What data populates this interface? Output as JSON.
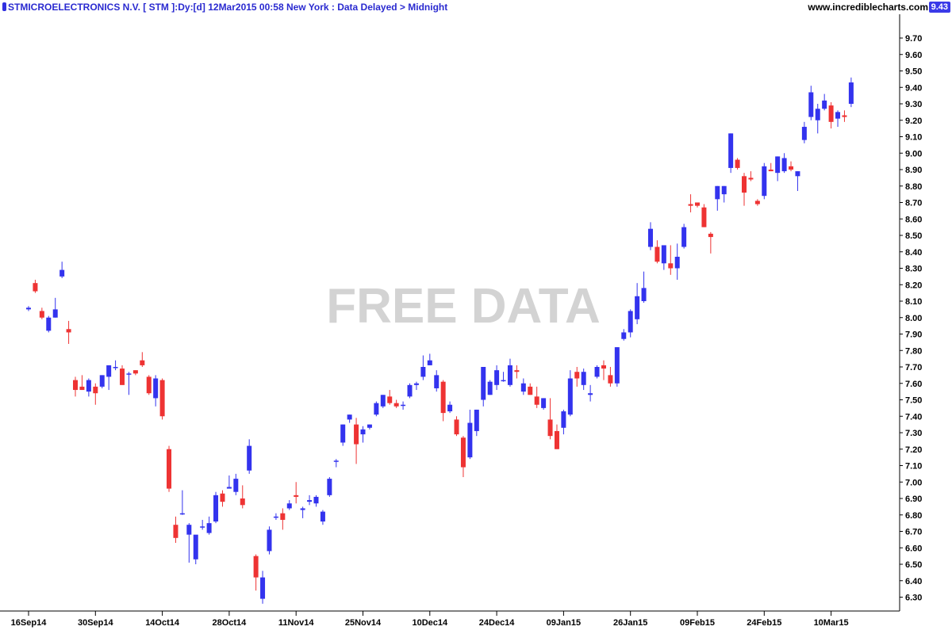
{
  "header": {
    "title": "STMICROELECTRONICS N.V. [ STM ]:Dy:[d]  12Mar2015 00:58 New York : Data Delayed > Midnight",
    "site": "www.incrediblecharts.com",
    "last_price": "9.43"
  },
  "watermark": "FREE DATA",
  "colors": {
    "up": "#3333ee",
    "down": "#ee3333",
    "axis": "#000000",
    "watermark": "#d3d3d3"
  },
  "chart_data": {
    "type": "candlestick",
    "title": "STMICROELECTRONICS N.V. [ STM ]:Dy:[d]",
    "ylim": [
      6.25,
      9.75
    ],
    "y_ticks": [
      "9.70",
      "9.60",
      "9.50",
      "9.40",
      "9.30",
      "9.20",
      "9.10",
      "9.00",
      "8.90",
      "8.80",
      "8.70",
      "8.60",
      "8.50",
      "8.40",
      "8.30",
      "8.20",
      "8.10",
      "8.00",
      "7.90",
      "7.80",
      "7.70",
      "7.60",
      "7.50",
      "7.40",
      "7.30",
      "7.20",
      "7.10",
      "7.00",
      "6.90",
      "6.80",
      "6.70",
      "6.60",
      "6.50",
      "6.40",
      "6.30"
    ],
    "x_ticks": [
      {
        "label": "16Sep14",
        "index": 0
      },
      {
        "label": "30Sep14",
        "index": 10
      },
      {
        "label": "14Oct14",
        "index": 20
      },
      {
        "label": "28Oct14",
        "index": 30
      },
      {
        "label": "11Nov14",
        "index": 40
      },
      {
        "label": "25Nov14",
        "index": 50
      },
      {
        "label": "10Dec14",
        "index": 60
      },
      {
        "label": "24Dec14",
        "index": 70
      },
      {
        "label": "09Jan15",
        "index": 80
      },
      {
        "label": "26Jan15",
        "index": 90
      },
      {
        "label": "09Feb15",
        "index": 100
      },
      {
        "label": "24Feb15",
        "index": 110
      },
      {
        "label": "10Mar15",
        "index": 120
      }
    ],
    "ohlc": [
      [
        8.05,
        8.07,
        8.04,
        8.06
      ],
      [
        8.21,
        8.23,
        8.15,
        8.16
      ],
      [
        8.04,
        8.06,
        7.99,
        8.0
      ],
      [
        7.92,
        8.01,
        7.91,
        8.0
      ],
      [
        8.0,
        8.12,
        8.0,
        8.05
      ],
      [
        8.25,
        8.34,
        8.24,
        8.29
      ],
      [
        7.93,
        7.98,
        7.84,
        7.91
      ],
      [
        7.62,
        7.64,
        7.52,
        7.56
      ],
      [
        7.58,
        7.65,
        7.56,
        7.56
      ],
      [
        7.55,
        7.63,
        7.52,
        7.62
      ],
      [
        7.58,
        7.6,
        7.47,
        7.54
      ],
      [
        7.58,
        7.65,
        7.57,
        7.65
      ],
      [
        7.64,
        7.71,
        7.56,
        7.71
      ],
      [
        7.7,
        7.74,
        7.68,
        7.7
      ],
      [
        7.69,
        7.71,
        7.59,
        7.59
      ],
      [
        7.66,
        7.67,
        7.53,
        7.66
      ],
      [
        7.68,
        7.68,
        7.65,
        7.66
      ],
      [
        7.74,
        7.79,
        7.7,
        7.71
      ],
      [
        7.64,
        7.65,
        7.53,
        7.54
      ],
      [
        7.51,
        7.65,
        7.46,
        7.63
      ],
      [
        7.62,
        7.63,
        7.38,
        7.4
      ],
      [
        7.2,
        7.22,
        6.94,
        6.96
      ],
      [
        6.74,
        6.79,
        6.63,
        6.66
      ],
      [
        6.81,
        6.95,
        6.8,
        6.81
      ],
      [
        6.68,
        6.75,
        6.51,
        6.74
      ],
      [
        6.53,
        6.67,
        6.5,
        6.68
      ],
      [
        6.73,
        6.77,
        6.71,
        6.73
      ],
      [
        6.69,
        6.79,
        6.68,
        6.75
      ],
      [
        6.76,
        6.94,
        6.75,
        6.92
      ],
      [
        6.93,
        6.95,
        6.85,
        6.88
      ],
      [
        6.96,
        7.04,
        6.96,
        6.97
      ],
      [
        6.94,
        7.05,
        6.92,
        7.02
      ],
      [
        6.9,
        6.98,
        6.84,
        6.86
      ],
      [
        7.07,
        7.26,
        7.05,
        7.22
      ],
      [
        6.55,
        6.56,
        6.34,
        6.42
      ],
      [
        6.29,
        6.46,
        6.26,
        6.42
      ],
      [
        6.58,
        6.73,
        6.56,
        6.71
      ],
      [
        6.79,
        6.81,
        6.77,
        6.79
      ],
      [
        6.81,
        6.84,
        6.71,
        6.77
      ],
      [
        6.84,
        6.89,
        6.83,
        6.87
      ],
      [
        6.92,
        7.0,
        6.87,
        6.91
      ],
      [
        6.83,
        6.85,
        6.78,
        6.84
      ],
      [
        6.88,
        6.92,
        6.86,
        6.89
      ],
      [
        6.87,
        6.92,
        6.85,
        6.91
      ],
      [
        6.76,
        6.83,
        6.74,
        6.82
      ],
      [
        6.92,
        7.03,
        6.91,
        7.02
      ],
      [
        7.13,
        7.14,
        7.09,
        7.13
      ],
      [
        7.24,
        7.35,
        7.22,
        7.35
      ],
      [
        7.38,
        7.41,
        7.36,
        7.41
      ],
      [
        7.35,
        7.39,
        7.11,
        7.23
      ],
      [
        7.29,
        7.34,
        7.24,
        7.32
      ],
      [
        7.33,
        7.35,
        7.32,
        7.35
      ],
      [
        7.41,
        7.49,
        7.4,
        7.48
      ],
      [
        7.46,
        7.53,
        7.45,
        7.53
      ],
      [
        7.52,
        7.56,
        7.47,
        7.48
      ],
      [
        7.48,
        7.5,
        7.45,
        7.46
      ],
      [
        7.47,
        7.49,
        7.44,
        7.47
      ],
      [
        7.52,
        7.6,
        7.51,
        7.59
      ],
      [
        7.59,
        7.61,
        7.56,
        7.6
      ],
      [
        7.64,
        7.77,
        7.62,
        7.7
      ],
      [
        7.71,
        7.78,
        7.71,
        7.74
      ],
      [
        7.57,
        7.68,
        7.55,
        7.65
      ],
      [
        7.61,
        7.62,
        7.37,
        7.42
      ],
      [
        7.43,
        7.49,
        7.42,
        7.47
      ],
      [
        7.38,
        7.4,
        7.28,
        7.29
      ],
      [
        7.27,
        7.28,
        7.03,
        7.09
      ],
      [
        7.15,
        7.44,
        7.14,
        7.36
      ],
      [
        7.31,
        7.44,
        7.28,
        7.44
      ],
      [
        7.5,
        7.7,
        7.46,
        7.7
      ],
      [
        7.53,
        7.62,
        7.53,
        7.61
      ],
      [
        7.59,
        7.71,
        7.56,
        7.68
      ],
      [
        7.62,
        7.67,
        7.61,
        7.62
      ],
      [
        7.59,
        7.75,
        7.58,
        7.71
      ],
      [
        7.68,
        7.71,
        7.63,
        7.67
      ],
      [
        7.55,
        7.63,
        7.53,
        7.6
      ],
      [
        7.58,
        7.6,
        7.53,
        7.53
      ],
      [
        7.52,
        7.58,
        7.45,
        7.47
      ],
      [
        7.45,
        7.51,
        7.44,
        7.51
      ],
      [
        7.38,
        7.51,
        7.26,
        7.28
      ],
      [
        7.31,
        7.35,
        7.2,
        7.2
      ],
      [
        7.33,
        7.44,
        7.29,
        7.43
      ],
      [
        7.41,
        7.68,
        7.4,
        7.63
      ],
      [
        7.67,
        7.7,
        7.58,
        7.63
      ],
      [
        7.59,
        7.69,
        7.56,
        7.67
      ],
      [
        7.53,
        7.59,
        7.49,
        7.54
      ],
      [
        7.64,
        7.71,
        7.63,
        7.7
      ],
      [
        7.71,
        7.74,
        7.62,
        7.69
      ],
      [
        7.65,
        7.7,
        7.58,
        7.6
      ],
      [
        7.6,
        7.82,
        7.58,
        7.82
      ],
      [
        7.87,
        7.93,
        7.86,
        7.91
      ],
      [
        7.91,
        8.05,
        7.88,
        8.04
      ],
      [
        7.99,
        8.21,
        7.96,
        8.13
      ],
      [
        8.1,
        8.28,
        8.09,
        8.18
      ],
      [
        8.43,
        8.58,
        8.41,
        8.54
      ],
      [
        8.43,
        8.47,
        8.33,
        8.34
      ],
      [
        8.33,
        8.44,
        8.29,
        8.44
      ],
      [
        8.33,
        8.44,
        8.26,
        8.3
      ],
      [
        8.3,
        8.45,
        8.23,
        8.37
      ],
      [
        8.43,
        8.57,
        8.42,
        8.55
      ],
      [
        8.69,
        8.75,
        8.64,
        8.68
      ],
      [
        8.7,
        8.7,
        8.67,
        8.68
      ],
      [
        8.67,
        8.69,
        8.55,
        8.55
      ],
      [
        8.51,
        8.52,
        8.39,
        8.49
      ],
      [
        8.72,
        8.8,
        8.65,
        8.8
      ],
      [
        8.75,
        8.8,
        8.7,
        8.8
      ],
      [
        8.91,
        9.12,
        8.88,
        9.12
      ],
      [
        8.96,
        8.97,
        8.9,
        8.91
      ],
      [
        8.86,
        8.88,
        8.68,
        8.76
      ],
      [
        8.85,
        8.89,
        8.83,
        8.84
      ],
      [
        8.71,
        8.72,
        8.68,
        8.69
      ],
      [
        8.74,
        8.94,
        8.72,
        8.92
      ],
      [
        8.9,
        8.94,
        8.89,
        8.89
      ],
      [
        8.88,
        8.98,
        8.83,
        8.98
      ],
      [
        8.89,
        9.0,
        8.88,
        8.97
      ],
      [
        8.92,
        8.95,
        8.89,
        8.9
      ],
      [
        8.86,
        8.89,
        8.77,
        8.89
      ],
      [
        9.08,
        9.19,
        9.06,
        9.16
      ],
      [
        9.22,
        9.41,
        9.2,
        9.37
      ],
      [
        9.2,
        9.3,
        9.12,
        9.27
      ],
      [
        9.27,
        9.36,
        9.26,
        9.32
      ],
      [
        9.29,
        9.31,
        9.15,
        9.19
      ],
      [
        9.21,
        9.26,
        9.16,
        9.25
      ],
      [
        9.23,
        9.26,
        9.19,
        9.22
      ],
      [
        9.3,
        9.46,
        9.28,
        9.43
      ]
    ]
  }
}
